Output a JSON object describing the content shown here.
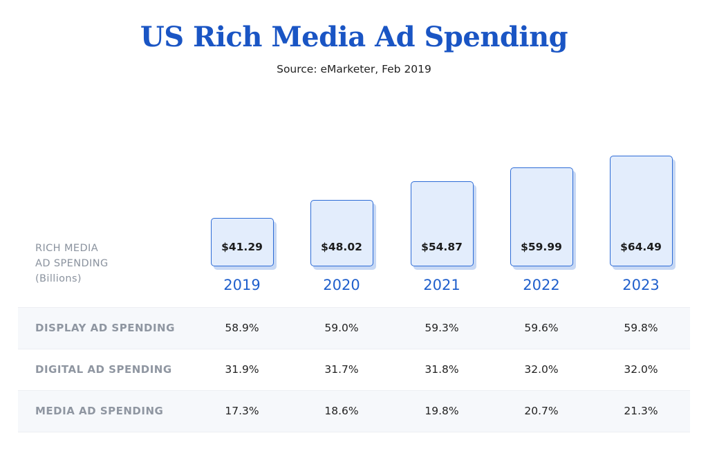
{
  "title": "US Rich Media Ad Spending",
  "subtitle": "Source: eMarketer, Feb 2019",
  "chart_data": {
    "type": "bar",
    "row_label": "RICH MEDIA\nAD SPENDING\n(Billions)",
    "categories": [
      "2019",
      "2020",
      "2021",
      "2022",
      "2023"
    ],
    "values": [
      41.29,
      48.02,
      54.87,
      59.99,
      64.49
    ],
    "value_labels": [
      "$41.29",
      "$48.02",
      "$54.87",
      "$59.99",
      "$64.49"
    ],
    "grid": false,
    "colors": {
      "bar_fill": "#e3edfc",
      "bar_border": "#2c6bd6",
      "title": "#1a55c4",
      "year": "#1f5fcc"
    }
  },
  "table": {
    "rows": [
      {
        "label": "DISPLAY AD SPENDING",
        "values": [
          "58.9%",
          "59.0%",
          "59.3%",
          "59.6%",
          "59.8%"
        ]
      },
      {
        "label": "DIGITAL AD SPENDING",
        "values": [
          "31.9%",
          "31.7%",
          "31.8%",
          "32.0%",
          "32.0%"
        ]
      },
      {
        "label": "MEDIA AD SPENDING",
        "values": [
          "17.3%",
          "18.6%",
          "19.8%",
          "20.7%",
          "21.3%"
        ]
      }
    ]
  }
}
